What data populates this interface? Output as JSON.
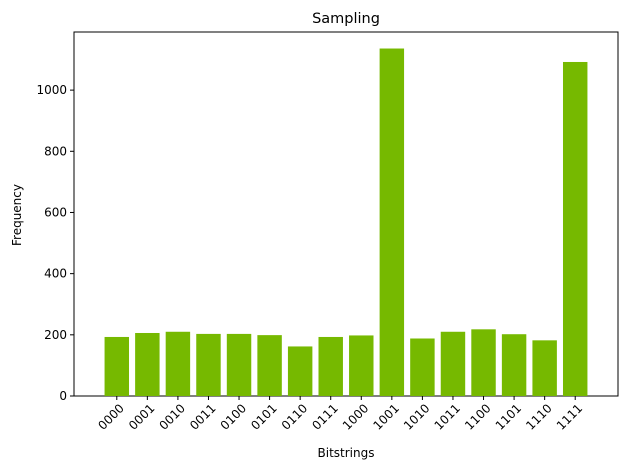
{
  "chart_data": {
    "type": "bar",
    "title": "Sampling",
    "xlabel": "Bitstrings",
    "ylabel": "Frequency",
    "categories": [
      "0000",
      "0001",
      "0010",
      "0011",
      "0100",
      "0101",
      "0110",
      "0111",
      "1000",
      "1001",
      "1010",
      "1011",
      "1100",
      "1101",
      "1110",
      "1111"
    ],
    "values": [
      193,
      206,
      210,
      203,
      203,
      199,
      162,
      193,
      198,
      1136,
      188,
      210,
      218,
      202,
      182,
      1092
    ],
    "ylim": [
      0,
      1190
    ],
    "yticks": [
      0,
      200,
      400,
      600,
      800,
      1000
    ],
    "bar_color": "#76b900",
    "grid": false,
    "legend": "none"
  }
}
